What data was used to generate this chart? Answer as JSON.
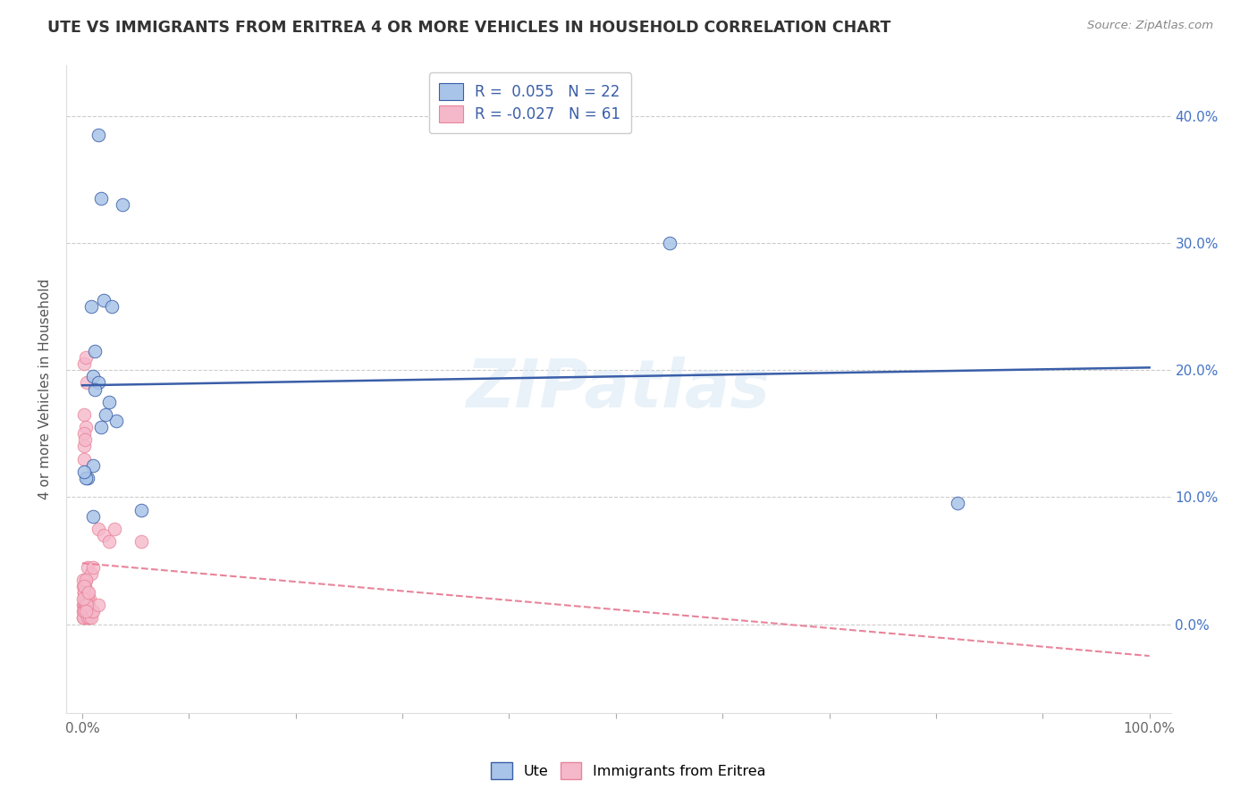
{
  "title": "UTE VS IMMIGRANTS FROM ERITREA 4 OR MORE VEHICLES IN HOUSEHOLD CORRELATION CHART",
  "source": "Source: ZipAtlas.com",
  "ylabel": "4 or more Vehicles in Household",
  "watermark": "ZIPatlas",
  "legend_ute_R": "0.055",
  "legend_ute_N": "22",
  "legend_imm_R": "-0.027",
  "legend_imm_N": "61",
  "xticks": [
    0,
    10,
    20,
    30,
    40,
    50,
    60,
    70,
    80,
    90,
    100
  ],
  "yticks": [
    0,
    10,
    20,
    30,
    40
  ],
  "ute_scatter_color": "#a8c4e8",
  "imm_scatter_color": "#f5b8ca",
  "ute_line_color": "#3a5ea8",
  "imm_line_color": "#e8849a",
  "ute_x": [
    1.5,
    1.8,
    3.8,
    2.0,
    0.8,
    1.2,
    2.8,
    1.0,
    1.5,
    0.5,
    1.0,
    3.2,
    1.8,
    2.5,
    1.2,
    55.0,
    1.0,
    82.0,
    0.3,
    0.2,
    5.5,
    2.2
  ],
  "ute_y": [
    38.5,
    33.5,
    33.0,
    25.5,
    25.0,
    21.5,
    25.0,
    19.5,
    19.0,
    11.5,
    12.5,
    16.0,
    15.5,
    17.5,
    18.5,
    30.0,
    8.5,
    9.5,
    11.5,
    12.0,
    9.0,
    16.5
  ],
  "imm_x": [
    0.2,
    0.3,
    0.4,
    0.2,
    0.3,
    0.2,
    0.15,
    0.15,
    0.25,
    0.1,
    0.2,
    0.3,
    0.4,
    0.1,
    0.15,
    0.2,
    0.25,
    0.1,
    0.15,
    0.2,
    0.25,
    0.3,
    0.35,
    0.4,
    0.5,
    0.6,
    0.7,
    0.8,
    1.0,
    1.5,
    2.0,
    2.5,
    3.0,
    0.1,
    0.2,
    0.3,
    0.4,
    0.5,
    0.6,
    0.1,
    0.2,
    0.3,
    0.1,
    0.2,
    0.3,
    0.4,
    0.5,
    0.6,
    0.7,
    0.8,
    0.9,
    1.0,
    1.5,
    0.5,
    0.3,
    0.4,
    5.5,
    0.2,
    0.1,
    0.3,
    0.6
  ],
  "imm_y": [
    20.5,
    21.0,
    19.0,
    16.5,
    15.5,
    15.0,
    14.0,
    13.0,
    14.5,
    3.0,
    2.5,
    3.5,
    2.0,
    1.5,
    2.0,
    2.5,
    3.0,
    1.0,
    1.5,
    1.0,
    1.5,
    0.5,
    1.0,
    0.5,
    4.5,
    1.5,
    2.0,
    4.0,
    4.5,
    7.5,
    7.0,
    6.5,
    7.5,
    0.5,
    0.5,
    1.0,
    1.5,
    2.0,
    1.0,
    0.5,
    1.0,
    2.0,
    3.5,
    2.5,
    1.5,
    1.0,
    0.5,
    1.0,
    0.5,
    0.5,
    1.0,
    1.0,
    1.5,
    2.5,
    3.5,
    1.5,
    6.5,
    3.0,
    2.0,
    1.0,
    2.5
  ],
  "xlim_min": -1.5,
  "xlim_max": 102,
  "ylim_min": -7,
  "ylim_max": 44,
  "blue_line_x0": 0,
  "blue_line_x1": 100,
  "blue_line_y0": 18.8,
  "blue_line_y1": 20.2,
  "pink_line_x0": 0,
  "pink_line_x1": 100,
  "pink_line_y0": 4.8,
  "pink_line_y1": -2.5
}
